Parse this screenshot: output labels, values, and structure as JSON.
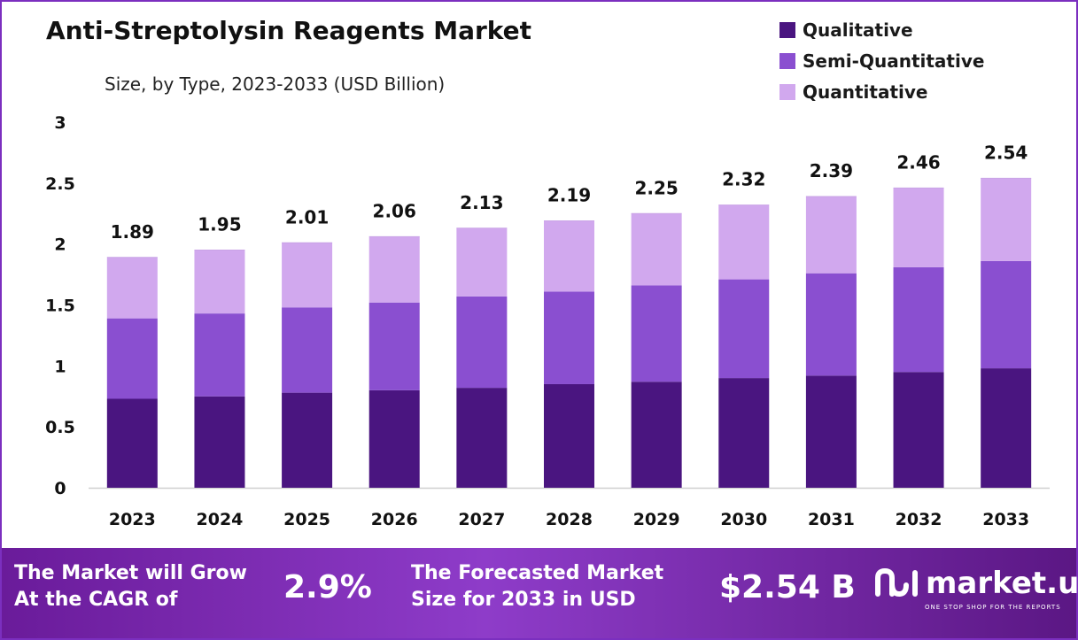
{
  "title": "Anti-Streptolysin Reagents Market",
  "subtitle": "Size, by Type, 2023-2033 (USD Billion)",
  "colors": {
    "qualitative": "#4a1580",
    "semi_quantitative": "#8a4fd0",
    "quantitative": "#d1a8ee",
    "axis": "#cfcfcf",
    "footer_start": "#6a1b9a",
    "footer_end": "#5b1784"
  },
  "chart_data": {
    "type": "bar",
    "stacked": true,
    "title": "Anti-Streptolysin Reagents Market",
    "subtitle": "Size, by Type, 2023-2033 (USD Billion)",
    "categories": [
      "2023",
      "2024",
      "2025",
      "2026",
      "2027",
      "2028",
      "2029",
      "2030",
      "2031",
      "2032",
      "2033"
    ],
    "series": [
      {
        "name": "Qualitative",
        "values": [
          0.73,
          0.75,
          0.78,
          0.8,
          0.82,
          0.85,
          0.87,
          0.9,
          0.92,
          0.95,
          0.98
        ]
      },
      {
        "name": "Semi-Quantitative",
        "values": [
          0.66,
          0.68,
          0.7,
          0.72,
          0.75,
          0.76,
          0.79,
          0.81,
          0.84,
          0.86,
          0.88
        ]
      },
      {
        "name": "Quantitative",
        "values": [
          0.5,
          0.52,
          0.53,
          0.54,
          0.56,
          0.58,
          0.59,
          0.61,
          0.63,
          0.65,
          0.68
        ]
      }
    ],
    "totals": [
      1.89,
      1.95,
      2.01,
      2.06,
      2.13,
      2.19,
      2.25,
      2.32,
      2.39,
      2.46,
      2.54
    ],
    "total_labels": [
      "1.89",
      "1.95",
      "2.01",
      "2.06",
      "2.13",
      "2.19",
      "2.25",
      "2.32",
      "2.39",
      "2.46",
      "2.54"
    ],
    "yticks": [
      "0",
      "0.5",
      "1",
      "1.5",
      "2",
      "2.5",
      "3"
    ],
    "ylim": [
      0,
      3
    ],
    "grid": false,
    "legend_position": "top-right"
  },
  "legend": [
    {
      "label": "Qualitative",
      "color": "#4a1580"
    },
    {
      "label": "Semi-Quantitative",
      "color": "#8a4fd0"
    },
    {
      "label": "Quantitative",
      "color": "#d1a8ee"
    }
  ],
  "footer": {
    "cagr_text_line1": "The Market will Grow",
    "cagr_text_line2": "At the CAGR of",
    "cagr_value": "2.9%",
    "forecast_text_line1": "The Forecasted Market",
    "forecast_text_line2": "Size for 2033 in USD",
    "forecast_value": "$2.54 B",
    "logo_text": "market.us",
    "logo_tagline": "ONE STOP SHOP FOR THE REPORTS"
  }
}
